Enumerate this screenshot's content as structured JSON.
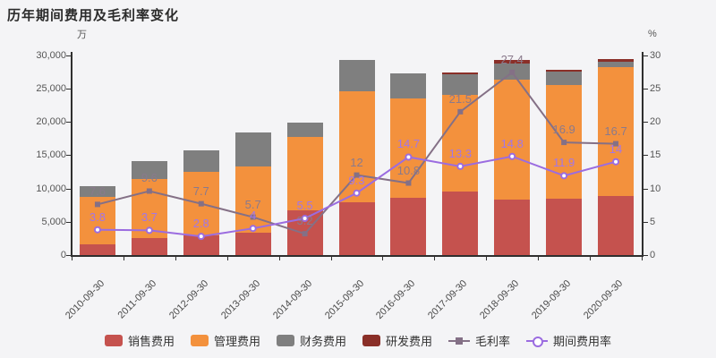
{
  "title": "历年期间费用及毛利率变化",
  "left_axis": {
    "unit": "万",
    "min": 0,
    "max": 30000,
    "tick_values": [
      0,
      5000,
      10000,
      15000,
      20000,
      25000,
      30000
    ],
    "tick_labels": [
      "0",
      "5,000",
      "10,000",
      "15,000",
      "20,000",
      "25,000",
      "30,000"
    ]
  },
  "right_axis": {
    "unit": "%",
    "min": 0,
    "max": 30,
    "tick_values": [
      0,
      5,
      10,
      15,
      20,
      25,
      30
    ],
    "tick_labels": [
      "0",
      "5",
      "10",
      "15",
      "20",
      "25",
      "30"
    ]
  },
  "colors": {
    "background": "#f4f4f6",
    "axis": "#2f2f2f",
    "axis_text": "#555555",
    "title_text": "#2b2b2b",
    "sales": "#c5524e",
    "admin": "#f3913d",
    "finance": "#7f7f7f",
    "rnd": "#8a2f28",
    "gross_margin_line": "#847086",
    "expense_ratio_line": "#9b6ce0",
    "gross_margin_label": "#8a7a8c",
    "expense_ratio_label": "#a276e8"
  },
  "chart_data": {
    "type": "stacked-bar-with-lines",
    "categories": [
      "2010-09-30",
      "2011-09-30",
      "2012-09-30",
      "2013-09-30",
      "2014-09-30",
      "2015-09-30",
      "2016-09-30",
      "2017-09-30",
      "2018-09-30",
      "2019-09-30",
      "2020-09-30"
    ],
    "bar_unit": "万",
    "line_unit": "%",
    "series": [
      {
        "name": "销售费用",
        "type": "bar",
        "axis": "left",
        "color": "#c5524e",
        "values": [
          1600,
          2600,
          2900,
          3350,
          6750,
          7900,
          8550,
          9500,
          8300,
          8450,
          8900
        ]
      },
      {
        "name": "管理费用",
        "type": "bar",
        "axis": "left",
        "color": "#f3913d",
        "values": [
          7150,
          8800,
          9600,
          10000,
          11000,
          16700,
          14950,
          14500,
          17950,
          17050,
          19300
        ]
      },
      {
        "name": "财务费用",
        "type": "bar",
        "axis": "left",
        "color": "#7f7f7f",
        "values": [
          1600,
          2700,
          3200,
          5000,
          2050,
          4600,
          3800,
          3050,
          2450,
          2000,
          800
        ]
      },
      {
        "name": "研发费用",
        "type": "bar",
        "axis": "left",
        "color": "#8a2f28",
        "values": [
          0,
          0,
          0,
          0,
          0,
          0,
          0,
          350,
          550,
          300,
          400
        ]
      },
      {
        "name": "毛利率",
        "type": "line",
        "axis": "right",
        "color": "#847086",
        "marker": "square",
        "label_color": "#8a7a8c",
        "values": [
          7.6,
          9.6,
          7.7,
          5.7,
          3.2,
          12,
          10.8,
          21.5,
          27.4,
          16.9,
          16.7
        ]
      },
      {
        "name": "期间费用率",
        "type": "line",
        "axis": "right",
        "color": "#9b6ce0",
        "marker": "circle",
        "label_color": "#a276e8",
        "values": [
          3.8,
          3.7,
          2.8,
          4,
          5.5,
          9.3,
          14.7,
          13.3,
          14.8,
          11.9,
          14
        ]
      }
    ],
    "legend_position": "bottom",
    "grid": false
  },
  "legend": [
    {
      "label": "销售费用",
      "swatch": "bar",
      "color": "#c5524e"
    },
    {
      "label": "管理费用",
      "swatch": "bar",
      "color": "#f3913d"
    },
    {
      "label": "财务费用",
      "swatch": "bar",
      "color": "#7f7f7f"
    },
    {
      "label": "研发费用",
      "swatch": "bar",
      "color": "#8a2f28"
    },
    {
      "label": "毛利率",
      "swatch": "line-square",
      "color": "#847086"
    },
    {
      "label": "期间费用率",
      "swatch": "line-circle",
      "color": "#9b6ce0"
    }
  ]
}
